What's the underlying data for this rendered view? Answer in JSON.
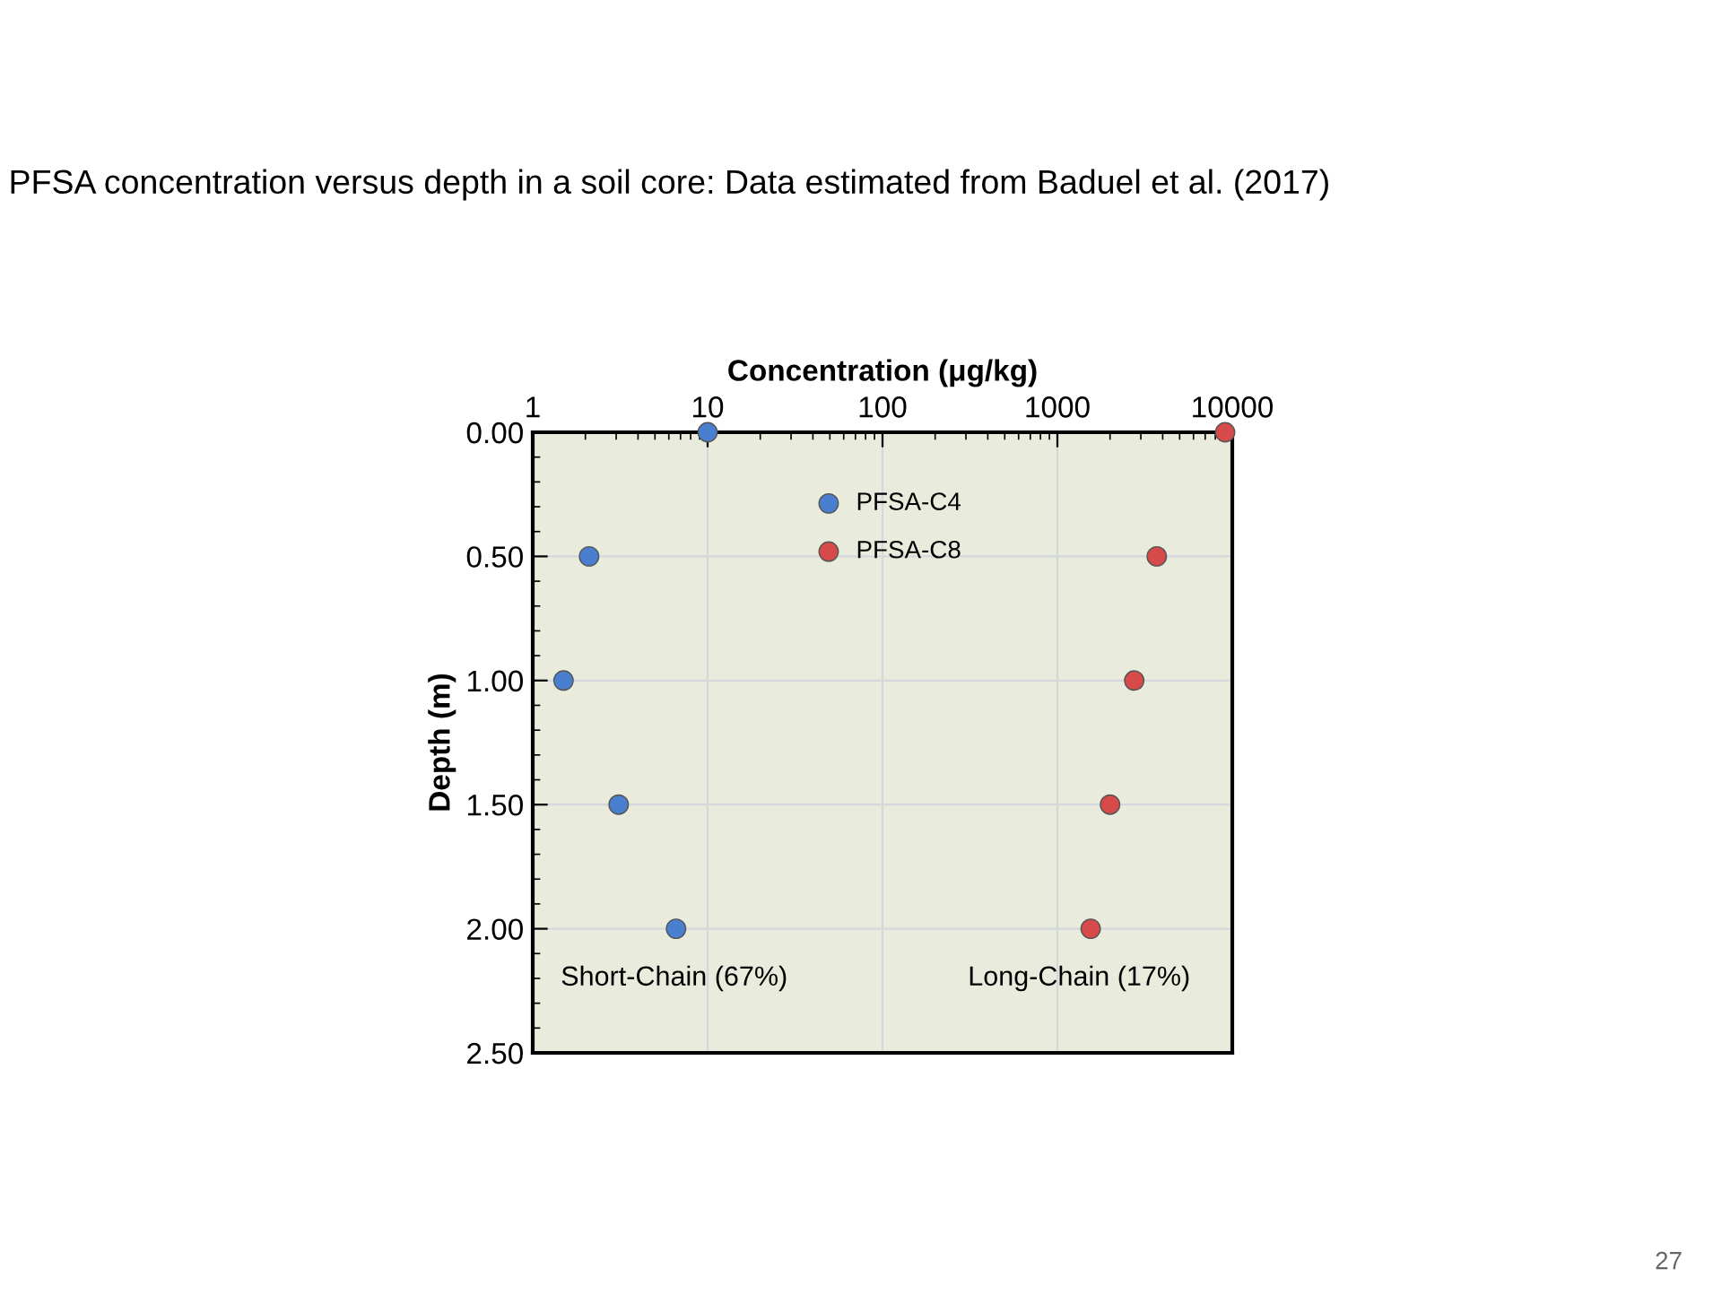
{
  "chart_data": {
    "type": "scatter",
    "title": "PFSA concentration versus depth in a soil core: Data estimated from Baduel et al. (2017)",
    "xlabel": "Concentration (μg/kg)",
    "ylabel": "Depth (m)",
    "series": [
      {
        "name": "PFSA-C4",
        "color": "#4a7fcf",
        "x": [
          10,
          2.1,
          1.5,
          3.1,
          6.6
        ],
        "values": [
          0,
          0.5,
          1.0,
          1.5,
          2.0
        ]
      },
      {
        "name": "PFSA-C8",
        "color": "#d64a4a",
        "x": [
          9100,
          3700,
          2750,
          2000,
          1550
        ],
        "values": [
          0,
          0.5,
          1.0,
          1.5,
          2.0
        ]
      }
    ],
    "log": "x",
    "xlim": [
      1,
      10000
    ],
    "xticks": [
      1,
      10,
      100,
      1000,
      10000
    ],
    "ylim": [
      2.5,
      0
    ],
    "yticks": [
      {
        "value": 0,
        "label": "0.00"
      },
      {
        "value": 0.5,
        "label": "0.50"
      },
      {
        "value": 1.0,
        "label": "1.00"
      },
      {
        "value": 1.5,
        "label": "1.50"
      },
      {
        "value": 2.0,
        "label": "2.00"
      },
      {
        "value": 2.5,
        "label": "2.50"
      }
    ],
    "grid": true,
    "legend": "top",
    "marker": "circle",
    "annotations": [
      "Short-Chain (67%)",
      "Long-Chain (17%)",
      "27"
    ]
  }
}
